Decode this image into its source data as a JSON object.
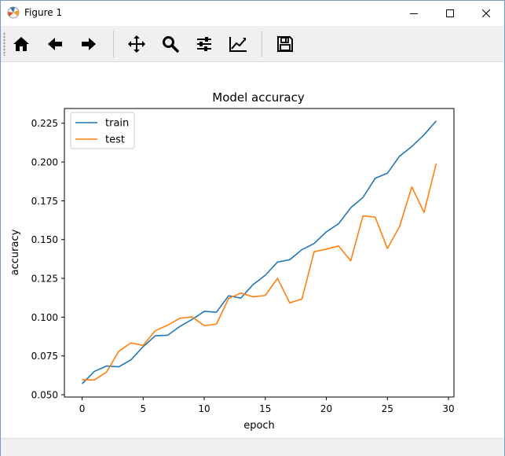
{
  "window": {
    "title": "Figure 1",
    "icons": {
      "app": "matplotlib-icon",
      "minimize": "minimize-icon",
      "maximize": "maximize-icon",
      "close": "close-icon"
    }
  },
  "toolbar": {
    "buttons": [
      {
        "icon": "home-icon"
      },
      {
        "icon": "back-arrow-icon"
      },
      {
        "icon": "forward-arrow-icon"
      },
      {
        "icon": "pan-icon"
      },
      {
        "icon": "zoom-icon"
      },
      {
        "icon": "subplots-config-icon"
      },
      {
        "icon": "edit-axes-icon"
      },
      {
        "icon": "save-icon"
      }
    ]
  },
  "chart_data": {
    "type": "line",
    "title": "Model accuracy",
    "xlabel": "epoch",
    "ylabel": "accuracy",
    "xlim": [
      -1.45,
      30.45
    ],
    "ylim": [
      0.0485,
      0.2345
    ],
    "xticks": [
      0,
      5,
      10,
      15,
      20,
      25,
      30
    ],
    "yticks": [
      0.05,
      0.075,
      0.1,
      0.125,
      0.15,
      0.175,
      0.2,
      0.225
    ],
    "ytick_labels": [
      "0.050",
      "0.075",
      "0.100",
      "0.125",
      "0.150",
      "0.175",
      "0.200",
      "0.225"
    ],
    "legend": "upper left",
    "grid": false,
    "x": [
      0,
      1,
      2,
      3,
      4,
      5,
      6,
      7,
      8,
      9,
      10,
      11,
      12,
      13,
      14,
      15,
      16,
      17,
      18,
      19,
      20,
      21,
      22,
      23,
      24,
      25,
      26,
      27,
      28,
      29
    ],
    "series": [
      {
        "name": "train",
        "color": "#1f77b4",
        "values": [
          0.057,
          0.065,
          0.0685,
          0.068,
          0.0725,
          0.081,
          0.088,
          0.0883,
          0.094,
          0.0985,
          0.1037,
          0.1032,
          0.1138,
          0.1123,
          0.121,
          0.127,
          0.1355,
          0.137,
          0.1435,
          0.1475,
          0.155,
          0.1602,
          0.1705,
          0.1772,
          0.1895,
          0.1928,
          0.2038,
          0.21,
          0.2175,
          0.2265
        ]
      },
      {
        "name": "test",
        "color": "#ff7f0e",
        "values": [
          0.0597,
          0.0595,
          0.0646,
          0.078,
          0.0834,
          0.0818,
          0.0913,
          0.0948,
          0.0993,
          0.1002,
          0.0945,
          0.0955,
          0.1121,
          0.1155,
          0.1131,
          0.114,
          0.125,
          0.1092,
          0.1117,
          0.1422,
          0.1438,
          0.1459,
          0.1363,
          0.1653,
          0.1645,
          0.1442,
          0.1585,
          0.184,
          0.1675,
          0.199
        ]
      }
    ]
  }
}
